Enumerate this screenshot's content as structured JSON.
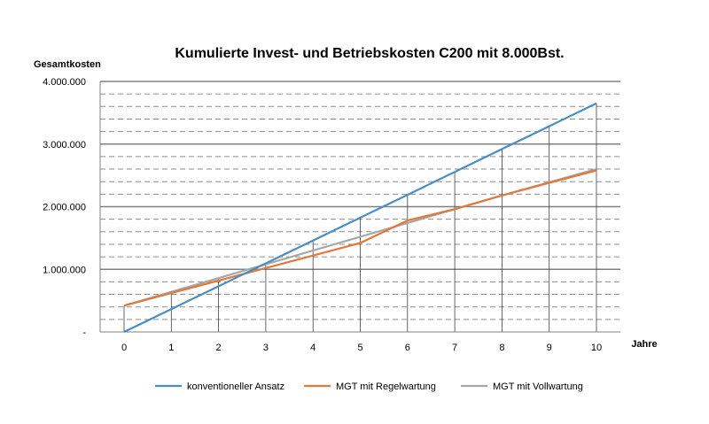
{
  "chart_data": {
    "type": "line",
    "title": "Kumulierte Invest- und Betriebskosten C200 mit 8.000Bst.",
    "ylabel": "Gesamtkosten",
    "xlabel": "Jahre",
    "x": [
      0,
      1,
      2,
      3,
      4,
      5,
      6,
      7,
      8,
      9,
      10
    ],
    "ylim": [
      0,
      4000000
    ],
    "y_ticks": [
      0,
      1000000,
      2000000,
      3000000,
      4000000
    ],
    "y_tick_labels": [
      "-",
      "1.000.000",
      "2.000.000",
      "3.000.000",
      "4.000.000"
    ],
    "x_tick_labels": [
      "0",
      "1",
      "2",
      "3",
      "4",
      "5",
      "6",
      "7",
      "8",
      "9",
      "10"
    ],
    "grid": {
      "major_y": true,
      "minor_y_dashed_step": 200000,
      "vertical_drop_lines": true
    },
    "legend_position": "bottom",
    "series": [
      {
        "name": "konventioneller Ansatz",
        "color": "#4a8ec6",
        "values": [
          0,
          365000,
          730000,
          1095000,
          1460000,
          1825000,
          2190000,
          2555000,
          2920000,
          3285000,
          3650000
        ]
      },
      {
        "name": "MGT mit Regelwartung",
        "color": "#e0793a",
        "values": [
          420000,
          620000,
          820000,
          1020000,
          1220000,
          1420000,
          1780000,
          1960000,
          2180000,
          2380000,
          2580000
        ]
      },
      {
        "name": "MGT mit Vollwartung",
        "color": "#a6a6a6",
        "values": [
          420000,
          640000,
          860000,
          1080000,
          1300000,
          1520000,
          1740000,
          1960000,
          2180000,
          2390000,
          2600000
        ]
      }
    ]
  }
}
